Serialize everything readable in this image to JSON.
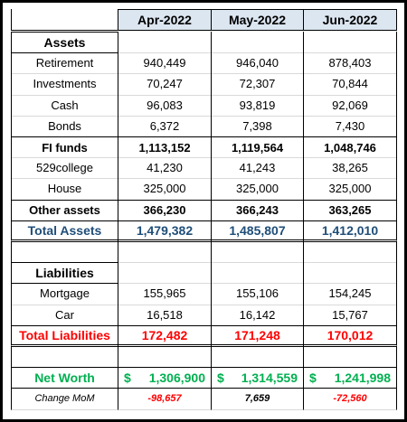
{
  "header": {
    "columns": [
      "Apr-2022",
      "May-2022",
      "Jun-2022"
    ]
  },
  "sections": [
    {
      "title": "Assets",
      "rows": [
        {
          "label": "Retirement",
          "values": [
            "940,449",
            "946,040",
            "878,403"
          ]
        },
        {
          "label": "Investments",
          "values": [
            "70,247",
            "72,307",
            "70,844"
          ]
        },
        {
          "label": "Cash",
          "values": [
            "96,083",
            "93,819",
            "92,069"
          ]
        },
        {
          "label": "Bonds",
          "values": [
            "6,372",
            "7,398",
            "7,430"
          ]
        },
        {
          "label": "FI funds",
          "values": [
            "1,113,152",
            "1,119,564",
            "1,048,746"
          ],
          "style": "bold"
        },
        {
          "label": "529college",
          "values": [
            "41,230",
            "41,243",
            "38,265"
          ]
        },
        {
          "label": "House",
          "values": [
            "325,000",
            "325,000",
            "325,000"
          ]
        },
        {
          "label": "Other assets",
          "values": [
            "366,230",
            "366,243",
            "363,265"
          ],
          "style": "bold"
        },
        {
          "label": "Total Assets",
          "values": [
            "1,479,382",
            "1,485,807",
            "1,412,010"
          ],
          "style": "total",
          "color": "#1f4e79"
        }
      ]
    },
    {
      "title": "Liabilities",
      "rows": [
        {
          "label": "Mortgage",
          "values": [
            "155,965",
            "155,106",
            "154,245"
          ]
        },
        {
          "label": "Car",
          "values": [
            "16,518",
            "16,142",
            "15,767"
          ]
        },
        {
          "label": "Total Liabilities",
          "values": [
            "172,482",
            "171,248",
            "170,012"
          ],
          "style": "total",
          "color": "#ff0000"
        }
      ]
    }
  ],
  "net_worth": {
    "label": "Net Worth",
    "currency": "$",
    "values": [
      "1,306,900",
      "1,314,559",
      "1,241,998"
    ],
    "color": "#00b050"
  },
  "change": {
    "label": "Change MoM",
    "values": [
      "-98,657",
      "7,659",
      "-72,560"
    ],
    "negative_color": "#ff0000"
  }
}
